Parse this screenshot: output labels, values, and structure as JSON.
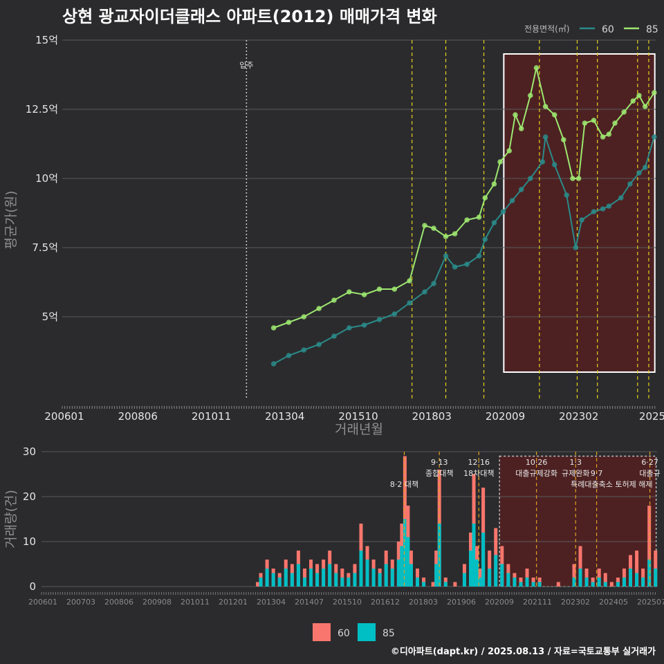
{
  "page": {
    "title": "상현 광교자이더클래스 아파트(2012) 매매가격 변화",
    "credit": "©디아파트(dapt.kr) / 2025.08.13 / 자료=국토교통부 실거래가"
  },
  "colors": {
    "background": "#2b2b2d",
    "series_60": "#2a8b8a",
    "series_85": "#9ee870",
    "bar_60": "#f8766d",
    "bar_85": "#00bfc4",
    "highlight": "#5a1f1f",
    "event_line": "#e6d21e"
  },
  "chart_data": [
    {
      "type": "scatter",
      "legend_title": "전용면적(㎡)",
      "legend_position": "top-right",
      "xlabel": "거래년월",
      "ylabel": "평균가(원)",
      "x_tick_labels": [
        "200601",
        "200806",
        "201011",
        "201304",
        "201510",
        "201803",
        "202009",
        "202302",
        "2025"
      ],
      "y_tick_labels": [
        "5억",
        "7.5억",
        "10억",
        "12.5억",
        "15억"
      ],
      "y_ticks": [
        5,
        7.5,
        10,
        12.5,
        15
      ],
      "ylim": [
        2.0,
        15.0
      ],
      "xlim": [
        2006.0,
        2025.65
      ],
      "grid": true,
      "move_in": {
        "x": 2012.1,
        "label": "입주"
      },
      "event_lines": [
        2017.58,
        2018.7,
        2019.96,
        2021.8,
        2023.05,
        2023.72,
        2025.05,
        2025.42
      ],
      "highlight_box": {
        "x": [
          2020.62,
          2025.62
        ],
        "y": [
          3.0,
          14.5
        ]
      },
      "series": [
        {
          "name": "60",
          "x": [
            2013.0,
            2013.5,
            2014.0,
            2014.5,
            2015.0,
            2015.5,
            2016.0,
            2016.5,
            2017.0,
            2017.5,
            2018.0,
            2018.3,
            2018.7,
            2019.0,
            2019.4,
            2019.8,
            2020.0,
            2020.3,
            2020.6,
            2020.9,
            2021.2,
            2021.5,
            2021.9,
            2022.0,
            2022.3,
            2022.7,
            2023.0,
            2023.2,
            2023.6,
            2023.9,
            2024.1,
            2024.5,
            2024.8,
            2025.1,
            2025.3,
            2025.6
          ],
          "y": [
            3.3,
            3.6,
            3.8,
            4.0,
            4.3,
            4.6,
            4.7,
            4.9,
            5.1,
            5.5,
            5.9,
            6.2,
            7.2,
            6.8,
            6.9,
            7.2,
            7.8,
            8.4,
            8.8,
            9.2,
            9.6,
            10.0,
            10.6,
            11.5,
            10.5,
            9.4,
            7.5,
            8.5,
            8.8,
            8.9,
            9.0,
            9.3,
            9.8,
            10.2,
            10.4,
            11.5
          ]
        },
        {
          "name": "85",
          "x": [
            2013.0,
            2013.5,
            2014.0,
            2014.5,
            2015.0,
            2015.5,
            2016.0,
            2016.5,
            2017.0,
            2017.5,
            2018.0,
            2018.3,
            2018.7,
            2019.0,
            2019.4,
            2019.8,
            2020.0,
            2020.3,
            2020.5,
            2020.8,
            2021.0,
            2021.2,
            2021.5,
            2021.7,
            2022.0,
            2022.3,
            2022.6,
            2022.9,
            2023.1,
            2023.3,
            2023.6,
            2023.9,
            2024.1,
            2024.3,
            2024.6,
            2024.9,
            2025.1,
            2025.3,
            2025.6
          ],
          "y": [
            4.6,
            4.8,
            5.0,
            5.3,
            5.6,
            5.9,
            5.8,
            6.0,
            6.0,
            6.3,
            8.3,
            8.2,
            7.9,
            8.0,
            8.5,
            8.6,
            9.3,
            9.8,
            10.6,
            11.0,
            12.3,
            11.8,
            13.0,
            14.0,
            12.6,
            12.3,
            11.4,
            10.0,
            10.0,
            12.0,
            12.1,
            11.5,
            11.6,
            12.0,
            12.4,
            12.8,
            13.0,
            12.6,
            13.1
          ]
        }
      ]
    },
    {
      "type": "bar",
      "ylabel": "거래량(건)",
      "x_tick_labels": [
        "200601",
        "200703",
        "200806",
        "200908",
        "201011",
        "201201",
        "201304",
        "201407",
        "201510",
        "201612",
        "201803",
        "201906",
        "202009",
        "202111",
        "202302",
        "202405",
        "202507"
      ],
      "y_ticks": [
        0,
        10,
        20,
        30
      ],
      "ylim": [
        0,
        30
      ],
      "xlim": [
        2006.0,
        2025.65
      ],
      "grid": true,
      "legend_position": "bottom",
      "legend": [
        "60",
        "85"
      ],
      "event_lines": [
        2017.58,
        2018.7,
        2019.96,
        2021.8,
        2023.05,
        2023.72,
        2025.42
      ],
      "highlight_box": {
        "x": [
          2020.62,
          2025.62
        ],
        "y": [
          0,
          29
        ]
      },
      "annotations": [
        {
          "x": 2017.58,
          "label": "8·2 대책",
          "row": 2
        },
        {
          "x": 2018.7,
          "label": "9·13",
          "row": 0
        },
        {
          "x": 2018.7,
          "label": "종합대책",
          "row": 1
        },
        {
          "x": 2019.96,
          "label": "12·16",
          "row": 0
        },
        {
          "x": 2019.96,
          "label": "18차대책",
          "row": 1
        },
        {
          "x": 2021.8,
          "label": "10·26",
          "row": 0
        },
        {
          "x": 2021.8,
          "label": "대출규제강화",
          "row": 1
        },
        {
          "x": 2023.05,
          "label": "1·3",
          "row": 0
        },
        {
          "x": 2023.05,
          "label": "규제완화",
          "row": 1
        },
        {
          "x": 2023.72,
          "label": "9·7",
          "row": 1
        },
        {
          "x": 2024.2,
          "label": "특례대출축소 토허제 해제",
          "row": 2
        },
        {
          "x": 2025.42,
          "label": "6·27",
          "row": 0
        },
        {
          "x": 2025.42,
          "label": "대출규",
          "row": 1
        }
      ],
      "x": [
        2012.9,
        2013.0,
        2013.2,
        2013.4,
        2013.6,
        2013.8,
        2014.0,
        2014.2,
        2014.4,
        2014.6,
        2014.8,
        2015.0,
        2015.2,
        2015.4,
        2015.6,
        2015.8,
        2016.0,
        2016.2,
        2016.4,
        2016.6,
        2016.8,
        2017.0,
        2017.2,
        2017.4,
        2017.5,
        2017.6,
        2017.7,
        2017.8,
        2018.0,
        2018.2,
        2018.5,
        2018.6,
        2018.7,
        2018.9,
        2019.2,
        2019.5,
        2019.7,
        2019.8,
        2019.9,
        2020.0,
        2020.1,
        2020.3,
        2020.5,
        2020.7,
        2020.9,
        2021.1,
        2021.3,
        2021.5,
        2021.7,
        2021.9,
        2022.1,
        2022.5,
        2023.0,
        2023.2,
        2023.4,
        2023.6,
        2023.8,
        2024.0,
        2024.2,
        2024.4,
        2024.6,
        2024.8,
        2025.0,
        2025.2,
        2025.4,
        2025.6
      ],
      "bar_60": [
        1,
        3,
        6,
        4,
        3,
        6,
        5,
        8,
        4,
        6,
        5,
        6,
        8,
        5,
        4,
        3,
        5,
        14,
        9,
        6,
        4,
        8,
        6,
        10,
        14,
        29,
        18,
        8,
        4,
        2,
        1,
        8,
        26,
        2,
        1,
        5,
        12,
        25,
        9,
        4,
        22,
        8,
        13,
        9,
        5,
        3,
        2,
        4,
        2,
        2,
        0,
        1,
        5,
        9,
        4,
        2,
        4,
        3,
        1,
        2,
        4,
        7,
        8,
        4,
        18,
        8
      ],
      "bar_85": [
        0,
        2,
        4,
        3,
        2,
        4,
        3,
        5,
        2,
        4,
        3,
        4,
        5,
        3,
        2,
        2,
        3,
        8,
        6,
        4,
        3,
        5,
        4,
        6,
        9,
        15,
        11,
        5,
        2,
        1,
        0,
        5,
        14,
        1,
        0,
        3,
        8,
        14,
        6,
        2,
        12,
        4,
        7,
        5,
        3,
        2,
        1,
        2,
        1,
        1,
        0,
        0,
        2,
        4,
        2,
        1,
        2,
        1,
        0,
        1,
        2,
        4,
        3,
        2,
        6,
        4
      ]
    }
  ]
}
